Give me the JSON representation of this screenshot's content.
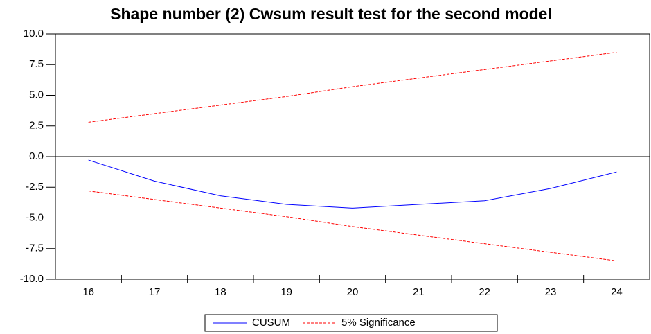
{
  "chart_data": {
    "type": "line",
    "title": "Shape number (2) Cwsum result test for the second model",
    "categories": [
      "16",
      "17",
      "18",
      "19",
      "20",
      "21",
      "22",
      "23",
      "24"
    ],
    "series": [
      {
        "name": "CUSUM",
        "color": "#0000ff",
        "dash": false,
        "values": [
          -0.28,
          -2.0,
          -3.2,
          -3.9,
          -4.2,
          -3.9,
          -3.6,
          -2.6,
          -1.25
        ]
      },
      {
        "name": "5% Significance",
        "color": "#ff0000",
        "dash": true,
        "values": [
          2.8,
          3.5,
          4.2,
          4.9,
          5.7,
          6.4,
          7.1,
          7.8,
          8.5
        ],
        "lower": [
          -2.8,
          -3.5,
          -4.2,
          -4.9,
          -5.7,
          -6.4,
          -7.1,
          -7.8,
          -8.5
        ]
      }
    ],
    "ylim": [
      -10,
      10
    ],
    "yticks": [
      {
        "value": -10,
        "label": "-10.0"
      },
      -7.5,
      {
        "value": -5,
        "label": "-5.0"
      },
      -2.5,
      {
        "value": 0,
        "label": "0.0"
      },
      2.5,
      {
        "value": 5,
        "label": "5.0"
      },
      7.5,
      {
        "value": 10,
        "label": "10.0"
      }
    ],
    "zero_line": true
  }
}
